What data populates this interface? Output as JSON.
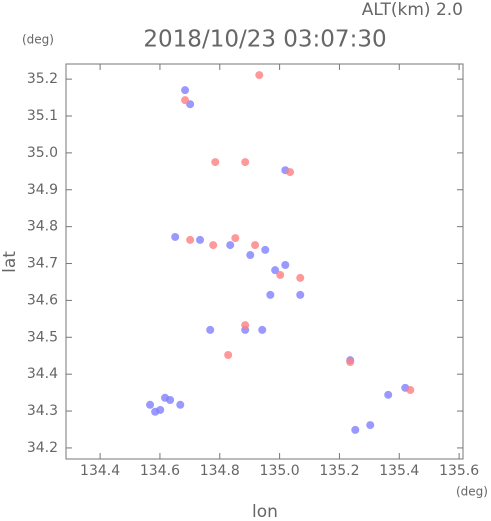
{
  "chart_data": {
    "type": "scatter",
    "title": "2018/10/23 03:07:30",
    "subtitle": "ALT(km) 2.0",
    "x_unit": "(deg)",
    "y_unit": "(deg)",
    "xlabel": "lon",
    "ylabel": "lat",
    "xlim": [
      134.286,
      135.613
    ],
    "ylim": [
      34.17,
      35.241
    ],
    "xticks": [
      134.4,
      134.6,
      134.8,
      {
        "value": 135,
        "label": "135.0"
      },
      135.2,
      135.4,
      135.6
    ],
    "yticks": [
      34.2,
      34.3,
      34.4,
      34.5,
      34.6,
      34.7,
      34.8,
      34.9,
      {
        "value": 35,
        "label": "35.0"
      },
      35.1,
      35.2
    ],
    "series": [
      {
        "color": "#8080ff",
        "x": [
          134.567,
          134.601,
          134.634,
          134.668,
          134.617,
          134.584,
          134.684,
          134.701,
          134.651,
          134.734,
          134.835,
          134.902,
          134.952,
          134.985,
          135.019,
          135.069,
          134.969,
          134.885,
          134.942,
          135.019,
          135.363,
          135.253,
          135.303,
          135.42,
          134.768,
          135.236
        ],
        "values": [
          34.317,
          34.303,
          34.33,
          34.317,
          34.336,
          34.298,
          35.17,
          35.132,
          34.772,
          34.764,
          34.75,
          34.723,
          34.737,
          34.682,
          34.696,
          34.615,
          34.615,
          34.52,
          34.52,
          34.953,
          34.344,
          34.249,
          34.262,
          34.363,
          34.52,
          34.438
        ]
      },
      {
        "color": "#ff8080",
        "x": [
          134.684,
          134.701,
          134.778,
          134.852,
          134.918,
          134.885,
          134.785,
          135.002,
          135.069,
          134.885,
          134.828,
          135.236,
          135.437,
          135.035,
          134.932
        ],
        "values": [
          35.143,
          34.764,
          34.75,
          34.769,
          34.75,
          34.975,
          34.975,
          34.669,
          34.661,
          34.533,
          34.452,
          34.433,
          34.357,
          34.948,
          35.211
        ]
      }
    ]
  }
}
